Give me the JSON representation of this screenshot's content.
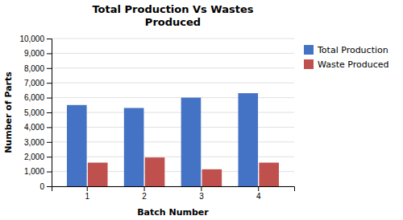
{
  "chart_data": {
    "type": "bar",
    "title": "Total Production Vs Wastes\nProduced",
    "xlabel": "Batch Number",
    "ylabel": "Number of Parts",
    "categories": [
      "1",
      "2",
      "3",
      "4"
    ],
    "series": [
      {
        "name": "Total Production",
        "color": "#4472C4",
        "values": [
          5500,
          5300,
          6000,
          6300
        ]
      },
      {
        "name": "Waste Produced",
        "color": "#C0504D",
        "values": [
          1600,
          1950,
          1150,
          1600
        ]
      }
    ],
    "ylim": [
      0,
      10000
    ],
    "yticks": [
      0,
      {
        "value": 1000,
        "label": "1,000"
      },
      {
        "value": 2000,
        "label": "2,000"
      },
      {
        "value": 3000,
        "label": "3,000"
      },
      {
        "value": 4000,
        "label": "4,000"
      },
      {
        "value": 5000,
        "label": "5,000"
      },
      {
        "value": 6000,
        "label": "6,000"
      },
      {
        "value": 7000,
        "label": "7,000"
      },
      {
        "value": 8000,
        "label": "8,000"
      },
      {
        "value": 9000,
        "label": "9,000"
      },
      {
        "value": 10000,
        "label": "10,000"
      }
    ],
    "grid": true,
    "legend": "right"
  }
}
